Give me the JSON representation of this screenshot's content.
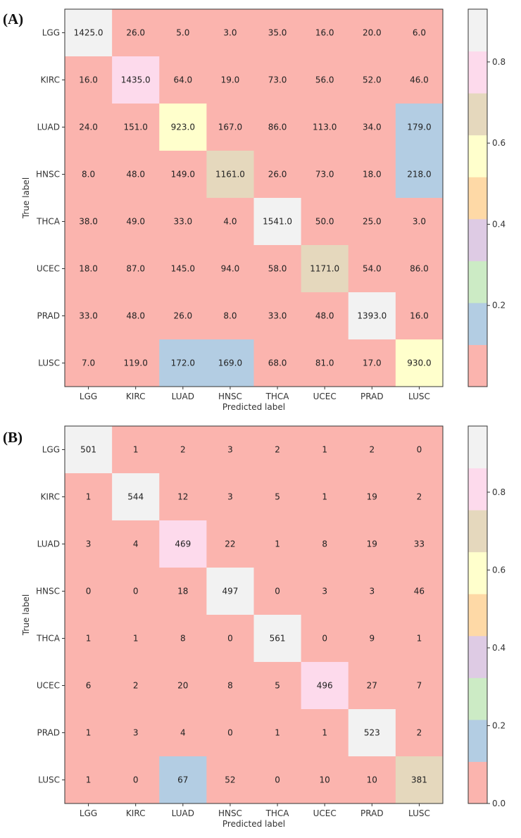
{
  "colormap": [
    "#fbb4ae",
    "#b3cde3",
    "#ccebc5",
    "#decbe4",
    "#fed9a6",
    "#ffffcc",
    "#e5d8bd",
    "#fddaec",
    "#f2f2f2"
  ],
  "chart_data": [
    {
      "type": "heatmap",
      "panel_label": "(A)",
      "xlabel": "Predicted label",
      "ylabel": "True label",
      "x_categories": [
        "LGG",
        "KIRC",
        "LUAD",
        "HNSC",
        "THCA",
        "UCEC",
        "PRAD",
        "LUSC"
      ],
      "y_categories": [
        "LGG",
        "KIRC",
        "LUAD",
        "HNSC",
        "THCA",
        "UCEC",
        "PRAD",
        "LUSC"
      ],
      "values": [
        [
          1425.0,
          26.0,
          5.0,
          3.0,
          35.0,
          16.0,
          20.0,
          6.0
        ],
        [
          16.0,
          1435.0,
          64.0,
          19.0,
          73.0,
          56.0,
          52.0,
          46.0
        ],
        [
          24.0,
          151.0,
          923.0,
          167.0,
          86.0,
          113.0,
          34.0,
          179.0
        ],
        [
          8.0,
          48.0,
          149.0,
          1161.0,
          26.0,
          73.0,
          18.0,
          218.0
        ],
        [
          38.0,
          49.0,
          33.0,
          4.0,
          1541.0,
          50.0,
          25.0,
          3.0
        ],
        [
          18.0,
          87.0,
          145.0,
          94.0,
          58.0,
          1171.0,
          54.0,
          86.0
        ],
        [
          33.0,
          48.0,
          26.0,
          8.0,
          33.0,
          48.0,
          1393.0,
          16.0
        ],
        [
          7.0,
          119.0,
          172.0,
          169.0,
          68.0,
          81.0,
          17.0,
          930.0
        ]
      ],
      "value_format": "fixed1",
      "colors": [
        [
          8,
          0,
          0,
          0,
          0,
          0,
          0,
          0
        ],
        [
          0,
          7,
          0,
          0,
          0,
          0,
          0,
          0
        ],
        [
          0,
          0,
          5,
          0,
          0,
          0,
          0,
          1
        ],
        [
          0,
          0,
          0,
          6,
          0,
          0,
          0,
          1
        ],
        [
          0,
          0,
          0,
          0,
          8,
          0,
          0,
          0
        ],
        [
          0,
          0,
          0,
          0,
          0,
          6,
          0,
          0
        ],
        [
          0,
          0,
          0,
          0,
          0,
          0,
          8,
          0
        ],
        [
          0,
          0,
          1,
          1,
          0,
          0,
          0,
          5
        ]
      ],
      "colorbar": {
        "range": [
          0.0,
          0.93
        ],
        "ticks": [
          "0.2",
          "0.4",
          "0.6",
          "0.8"
        ],
        "tick_values": [
          0.2,
          0.4,
          0.6,
          0.8
        ]
      }
    },
    {
      "type": "heatmap",
      "panel_label": "(B)",
      "xlabel": "Predicted label",
      "ylabel": "True label",
      "x_categories": [
        "LGG",
        "KIRC",
        "LUAD",
        "HNSC",
        "THCA",
        "UCEC",
        "PRAD",
        "LUSC"
      ],
      "y_categories": [
        "LGG",
        "KIRC",
        "LUAD",
        "HNSC",
        "THCA",
        "UCEC",
        "PRAD",
        "LUSC"
      ],
      "values": [
        [
          501,
          1,
          2,
          3,
          2,
          1,
          2,
          0
        ],
        [
          1,
          544,
          12,
          3,
          5,
          1,
          19,
          2
        ],
        [
          3,
          4,
          469,
          22,
          1,
          8,
          19,
          33
        ],
        [
          0,
          0,
          18,
          497,
          0,
          3,
          3,
          46
        ],
        [
          1,
          1,
          8,
          0,
          561,
          0,
          9,
          1
        ],
        [
          6,
          2,
          20,
          8,
          5,
          496,
          27,
          7
        ],
        [
          1,
          3,
          4,
          0,
          1,
          1,
          523,
          2
        ],
        [
          1,
          0,
          67,
          52,
          0,
          10,
          10,
          381
        ]
      ],
      "value_format": "int",
      "colors": [
        [
          8,
          0,
          0,
          0,
          0,
          0,
          0,
          0
        ],
        [
          0,
          8,
          0,
          0,
          0,
          0,
          0,
          0
        ],
        [
          0,
          0,
          7,
          0,
          0,
          0,
          0,
          0
        ],
        [
          0,
          0,
          0,
          8,
          0,
          0,
          0,
          0
        ],
        [
          0,
          0,
          0,
          0,
          8,
          0,
          0,
          0
        ],
        [
          0,
          0,
          0,
          0,
          0,
          7,
          0,
          0
        ],
        [
          0,
          0,
          0,
          0,
          0,
          0,
          8,
          0
        ],
        [
          0,
          0,
          1,
          0,
          0,
          0,
          0,
          6
        ]
      ],
      "colorbar": {
        "range": [
          0.0,
          0.97
        ],
        "ticks": [
          "0.0",
          "0.2",
          "0.4",
          "0.6",
          "0.8"
        ],
        "tick_values": [
          0.0,
          0.2,
          0.4,
          0.6,
          0.8
        ]
      }
    }
  ]
}
